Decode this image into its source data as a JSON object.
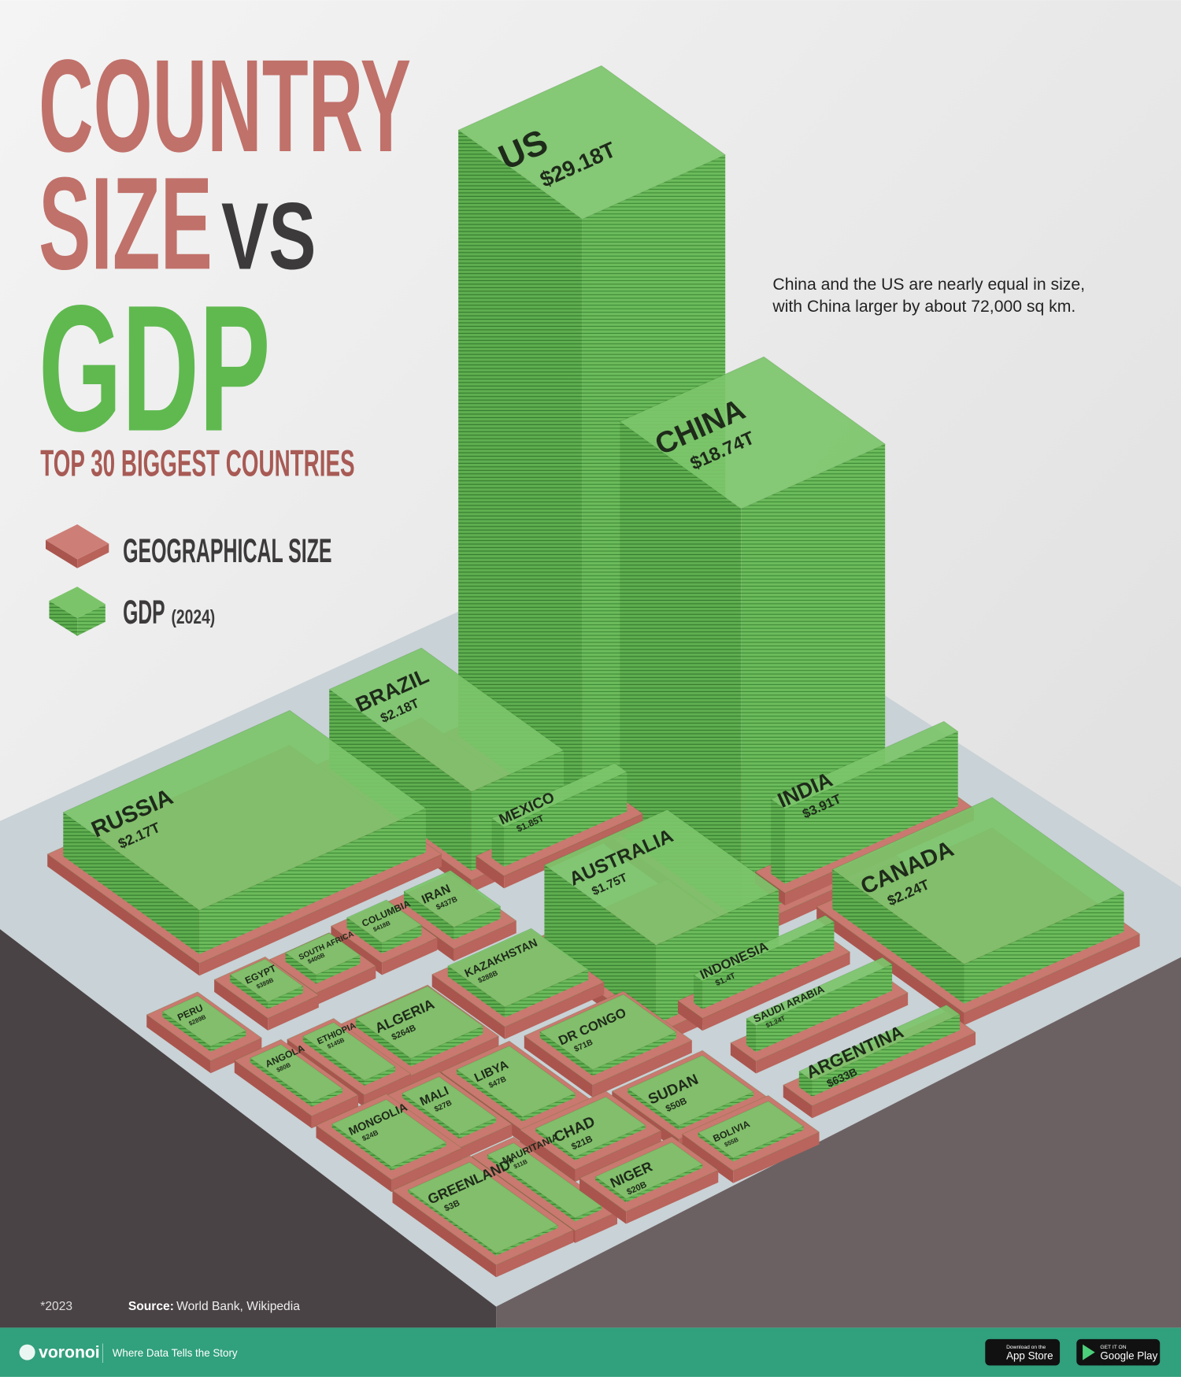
{
  "title": {
    "line1": "COUNTRY",
    "line2a": "SIZE",
    "line2b": "VS",
    "line3": "GDP",
    "subtitle": "TOP 30 BIGGEST COUNTRIES"
  },
  "legend": {
    "size": "GEOGRAPHICAL SIZE",
    "gdp": "GDP",
    "gdp_year": "(2024)"
  },
  "annotation": [
    "China and the US are nearly equal in size,",
    "with China larger by about 72,000 sq km."
  ],
  "countries": [
    {
      "name": "US",
      "gdp": "$29.18T"
    },
    {
      "name": "CHINA",
      "gdp": "$18.74T"
    },
    {
      "name": "BRAZIL",
      "gdp": "$2.18T"
    },
    {
      "name": "RUSSIA",
      "gdp": "$2.17T"
    },
    {
      "name": "MEXICO",
      "gdp": "$1.85T"
    },
    {
      "name": "INDIA",
      "gdp": "$3.91T"
    },
    {
      "name": "AUSTRALIA",
      "gdp": "$1.75T"
    },
    {
      "name": "CANADA",
      "gdp": "$2.24T"
    },
    {
      "name": "IRAN",
      "gdp": "$437B"
    },
    {
      "name": "COLUMBIA",
      "gdp": "$418B"
    },
    {
      "name": "INDONESIA",
      "gdp": "$1.4T"
    },
    {
      "name": "KAZAKHSTAN",
      "gdp": "$288B"
    },
    {
      "name": "SOUTH AFRICA",
      "gdp": "$400B"
    },
    {
      "name": "EGYPT",
      "gdp": "$389B"
    },
    {
      "name": "SAUDI ARABIA",
      "gdp": "$1.24T"
    },
    {
      "name": "PERU",
      "gdp": "$289B"
    },
    {
      "name": "ALGERIA",
      "gdp": "$264B"
    },
    {
      "name": "DR CONGO",
      "gdp": "$71B"
    },
    {
      "name": "ETHIOPIA",
      "gdp": "$145B"
    },
    {
      "name": "ARGENTINA",
      "gdp": "$633B"
    },
    {
      "name": "ANGOLA",
      "gdp": "$80B"
    },
    {
      "name": "LIBYA",
      "gdp": "$47B"
    },
    {
      "name": "SUDAN",
      "gdp": "$50B"
    },
    {
      "name": "MALI",
      "gdp": "$27B"
    },
    {
      "name": "BOLIVIA",
      "gdp": "$55B"
    },
    {
      "name": "CHAD",
      "gdp": "$21B"
    },
    {
      "name": "MONGOLIA",
      "gdp": "$24B"
    },
    {
      "name": "MAURITANIA",
      "gdp": "$11B"
    },
    {
      "name": "NIGER",
      "gdp": "$20B"
    },
    {
      "name": "GREENLAND*",
      "gdp": "$3B"
    }
  ],
  "footer": {
    "note": "*2023",
    "source_label": "Source:",
    "source": "World Bank, Wikipedia",
    "brand": "voronoi",
    "tagline": "Where Data Tells the Story",
    "app_store_small": "Download on the",
    "app_store": "App Store",
    "google_small": "GET IT ON",
    "google": "Google Play"
  }
}
